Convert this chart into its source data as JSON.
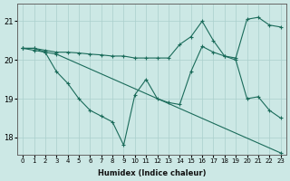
{
  "xlabel": "Humidex (Indice chaleur)",
  "bg_color": "#cce8e5",
  "grid_color": "#aacfcc",
  "line_color": "#1a6b5a",
  "xlim": [
    -0.5,
    23.5
  ],
  "ylim": [
    17.55,
    21.45
  ],
  "yticks": [
    18,
    19,
    20,
    21
  ],
  "xticks": [
    0,
    1,
    2,
    3,
    4,
    5,
    6,
    7,
    8,
    9,
    10,
    11,
    12,
    13,
    14,
    15,
    16,
    17,
    18,
    19,
    20,
    21,
    22,
    23
  ],
  "line1_x": [
    0,
    1,
    2,
    3,
    4,
    5,
    6,
    7,
    8,
    9,
    10,
    11,
    12,
    13,
    14,
    15,
    16,
    17,
    18,
    19,
    20,
    21,
    22,
    23
  ],
  "line1_y": [
    20.3,
    20.3,
    20.2,
    19.7,
    19.4,
    19.0,
    18.7,
    18.55,
    18.4,
    17.8,
    19.1,
    19.5,
    19.0,
    18.9,
    18.85,
    19.7,
    20.35,
    20.2,
    20.1,
    20.0,
    19.0,
    19.05,
    18.7,
    18.5
  ],
  "line2_x": [
    0,
    1,
    2,
    3,
    23
  ],
  "line2_y": [
    20.3,
    20.25,
    20.2,
    20.15,
    17.6
  ],
  "line3_x": [
    0,
    1,
    2,
    3,
    4,
    5,
    6,
    7,
    8,
    9,
    10,
    11,
    12,
    13,
    14,
    15,
    16,
    17,
    18,
    19,
    20,
    21,
    22,
    23
  ],
  "line3_y": [
    20.3,
    20.3,
    20.25,
    20.2,
    20.2,
    20.18,
    20.15,
    20.13,
    20.1,
    20.1,
    20.05,
    20.05,
    20.05,
    20.05,
    20.4,
    20.6,
    21.0,
    20.5,
    20.1,
    20.05,
    21.05,
    21.1,
    20.9,
    20.85
  ]
}
